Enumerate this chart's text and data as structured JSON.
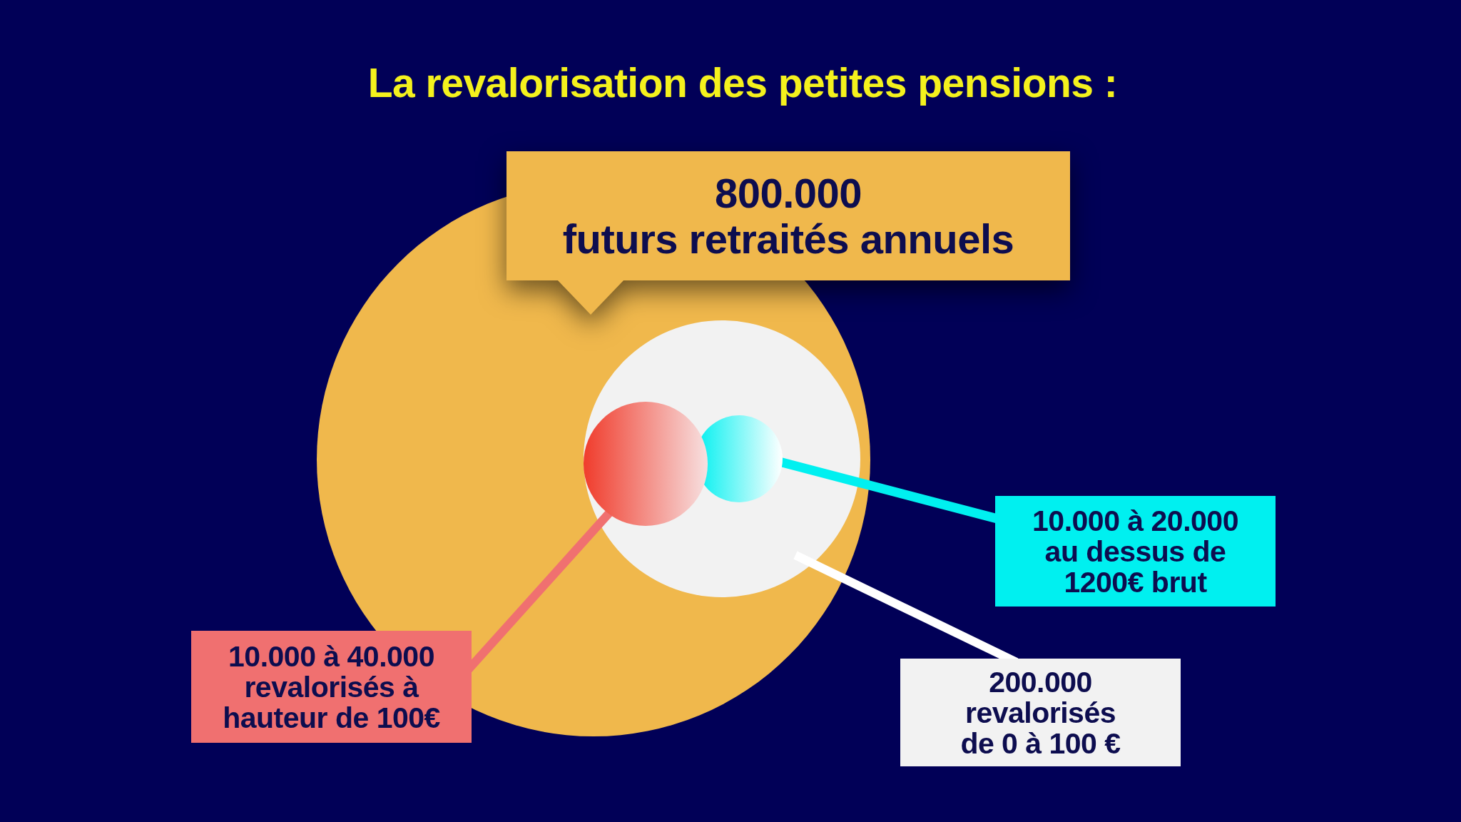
{
  "chart_data": {
    "type": "other",
    "title": "La revalorisation des petites pensions :",
    "categories": [
      "futurs retraités annuels",
      "au dessus de\n1200€ brut",
      "revalorisés à\nhauteur de 100€",
      "revalorisés\nde 0 à 100 €"
    ],
    "values": [
      800000,
      20000,
      40000,
      200000
    ],
    "value_labels": [
      "800.000",
      "10.000 à 20.000",
      "10.000 à 40.000",
      "200.000"
    ],
    "colors": [
      "#f0b84c",
      "#00f0f0",
      "#f07070",
      "#f2f2f2"
    ]
  }
}
